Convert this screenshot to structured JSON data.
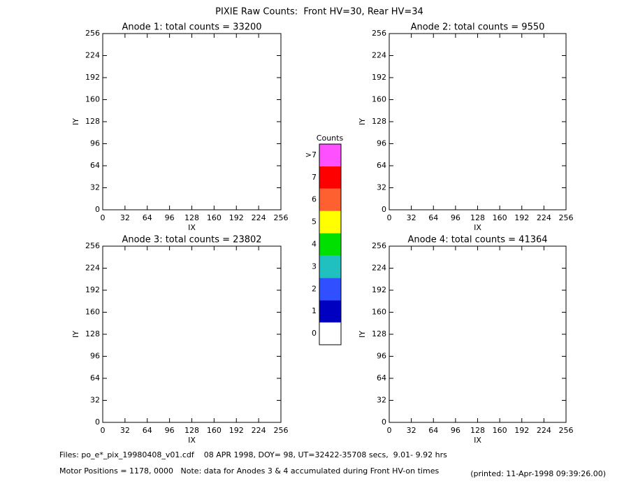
{
  "title": "PIXIE Raw Counts:  Front HV=30, Rear HV=34",
  "chart_data": [
    {
      "type": "heatmap",
      "title": "Anode 1: total counts = 33200",
      "xlabel": "IX",
      "ylabel": "IY",
      "xlim": [
        0,
        256
      ],
      "ylim": [
        0,
        256
      ],
      "xticks": [
        0,
        32,
        64,
        96,
        128,
        160,
        192,
        224,
        256
      ],
      "yticks": [
        0,
        32,
        64,
        96,
        128,
        160,
        192,
        224,
        256
      ]
    },
    {
      "type": "heatmap",
      "title": "Anode 2: total counts = 9550",
      "xlabel": "IX",
      "ylabel": "IY",
      "xlim": [
        0,
        256
      ],
      "ylim": [
        0,
        256
      ],
      "xticks": [
        0,
        32,
        64,
        96,
        128,
        160,
        192,
        224,
        256
      ],
      "yticks": [
        0,
        32,
        64,
        96,
        128,
        160,
        192,
        224,
        256
      ]
    },
    {
      "type": "heatmap",
      "title": "Anode 3: total counts = 23802",
      "xlabel": "IX",
      "ylabel": "IY",
      "xlim": [
        0,
        256
      ],
      "ylim": [
        0,
        256
      ],
      "xticks": [
        0,
        32,
        64,
        96,
        128,
        160,
        192,
        224,
        256
      ],
      "yticks": [
        0,
        32,
        64,
        96,
        128,
        160,
        192,
        224,
        256
      ]
    },
    {
      "type": "heatmap",
      "title": "Anode 4: total counts = 41364",
      "xlabel": "IX",
      "ylabel": "IY",
      "xlim": [
        0,
        256
      ],
      "ylim": [
        0,
        256
      ],
      "xticks": [
        0,
        32,
        64,
        96,
        128,
        160,
        192,
        224,
        256
      ],
      "yticks": [
        0,
        32,
        64,
        96,
        128,
        160,
        192,
        224,
        256
      ]
    }
  ],
  "colorbar": {
    "title": "Counts",
    "labels": [
      "0",
      "1",
      "2",
      "3",
      "4",
      "5",
      "6",
      "7",
      ">7"
    ],
    "colors": [
      "#ffffff",
      "#0000c0",
      "#3050ff",
      "#20c0c0",
      "#00e000",
      "#ffff00",
      "#ff6030",
      "#ff0000",
      "#ff50ff"
    ]
  },
  "footer": {
    "files": "Files: po_e*_pix_19980408_v01.cdf    08 APR 1998, DOY= 98, UT=32422-35708 secs,  9.01- 9.92 hrs",
    "motor": "Motor Positions = 1178, 0000   Note: data for Anodes 3 & 4 accumulated during Front HV-on times",
    "printed": "(printed: 11-Apr-1998 09:39:26.00)"
  }
}
